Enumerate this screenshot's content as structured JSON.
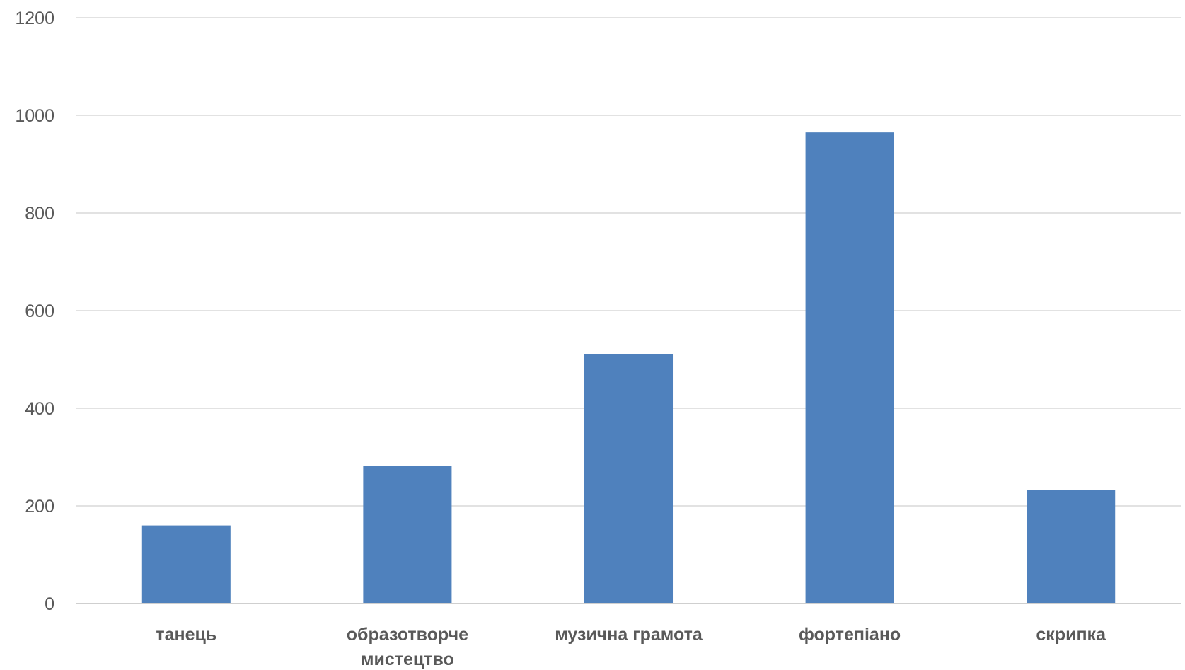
{
  "chart_data": {
    "type": "bar",
    "title": "",
    "xlabel": "",
    "ylabel": "",
    "categories": [
      [
        "танець"
      ],
      [
        "образотворче",
        "мистецтво"
      ],
      [
        "музична грамота"
      ],
      [
        "фортепіано"
      ],
      [
        "скрипка"
      ]
    ],
    "values": [
      160,
      282,
      511,
      965,
      233
    ],
    "ylim": [
      0,
      1200
    ],
    "yticks": [
      0,
      200,
      400,
      600,
      800,
      1000,
      1200
    ],
    "grid": true,
    "legend": "none",
    "bar_color": "#4f81bd",
    "grid_color": "#d9d9d9",
    "text_color": "#595959"
  }
}
